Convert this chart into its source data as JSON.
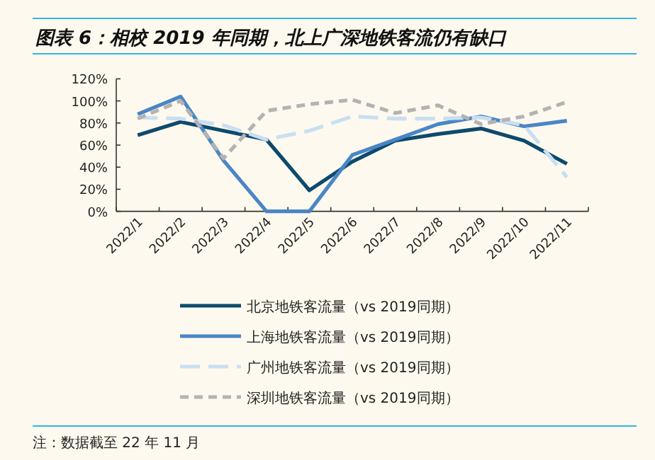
{
  "chart_data": {
    "type": "line",
    "title": "图表 6：相校 2019 年同期，北上广深地铁客流仍有缺口",
    "categories": [
      "2022/1",
      "2022/2",
      "2022/3",
      "2022/4",
      "2022/5",
      "2022/6",
      "2022/7",
      "2022/8",
      "2022/9",
      "2022/10",
      "2022/11"
    ],
    "series": [
      {
        "name": "北京地铁客流量（vs 2019同期）",
        "color": "#0d4a6e",
        "line_style": "solid",
        "values": [
          69,
          81,
          73,
          65,
          19,
          45,
          64,
          70,
          75,
          64,
          43
        ]
      },
      {
        "name": "上海地铁客流量（vs 2019同期）",
        "color": "#4a86c5",
        "line_style": "solid",
        "values": [
          88,
          104,
          46,
          0,
          0,
          51,
          65,
          79,
          86,
          77,
          82
        ]
      },
      {
        "name": "广州地铁客流量（vs 2019同期）",
        "color": "#c9dff2",
        "line_style": "dashed",
        "values": [
          85,
          84,
          78,
          65,
          73,
          86,
          84,
          84,
          85,
          78,
          31
        ]
      },
      {
        "name": "深圳地铁客流量（vs 2019同期）",
        "color": "#b3b3b3",
        "line_style": "dotted",
        "values": [
          84,
          100,
          48,
          91,
          97,
          101,
          89,
          96,
          79,
          86,
          99
        ]
      }
    ],
    "ylim": [
      0,
      120
    ],
    "yticks": [
      {
        "value": 0,
        "label": "0%"
      },
      {
        "value": 20,
        "label": "20%"
      },
      {
        "value": 40,
        "label": "40%"
      },
      {
        "value": 60,
        "label": "60%"
      },
      {
        "value": 80,
        "label": "80%"
      },
      {
        "value": 100,
        "label": "100%"
      },
      {
        "value": 120,
        "label": "120%"
      }
    ],
    "legend": "bottom",
    "annotations": [
      "注：数据截至 22 年 11 月"
    ]
  }
}
